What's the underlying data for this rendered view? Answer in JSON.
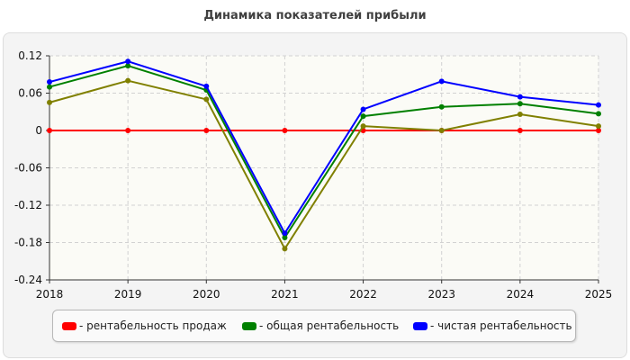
{
  "chart_data": {
    "type": "line",
    "title": "Динамика показателей прибыли",
    "x": [
      "2018",
      "2019",
      "2020",
      "2021",
      "2022",
      "2023",
      "2024",
      "2025"
    ],
    "y_ticks": [
      "0.12",
      "0.06",
      "0",
      "-0.06",
      "-0.12",
      "-0.18",
      "-0.24"
    ],
    "ylim": [
      -0.24,
      0.12
    ],
    "grid": true,
    "legend_position": "bottom",
    "series": [
      {
        "name": "- рентабельность продаж",
        "color": "#ff0000",
        "values": [
          0,
          0,
          0,
          0,
          0,
          0,
          0,
          0
        ]
      },
      {
        "name": "",
        "color": "#808000",
        "values": [
          0.045,
          0.08,
          0.05,
          -0.19,
          0.007,
          0.0,
          0.026,
          0.007
        ]
      },
      {
        "name": "- общая рентабельность",
        "color": "#008000",
        "values": [
          0.07,
          0.104,
          0.065,
          -0.172,
          0.023,
          0.038,
          0.043,
          0.027
        ]
      },
      {
        "name": "- чистая рентабельность",
        "color": "#0000ff",
        "values": [
          0.078,
          0.111,
          0.071,
          -0.165,
          0.034,
          0.079,
          0.054,
          0.041
        ]
      }
    ],
    "legend": [
      {
        "label": "- рентабельность продаж",
        "color": "#ff0000"
      },
      {
        "label": "- общая рентабельность",
        "color": "#008000"
      },
      {
        "label": "- чистая рентабельность",
        "color": "#0000ff"
      }
    ]
  }
}
